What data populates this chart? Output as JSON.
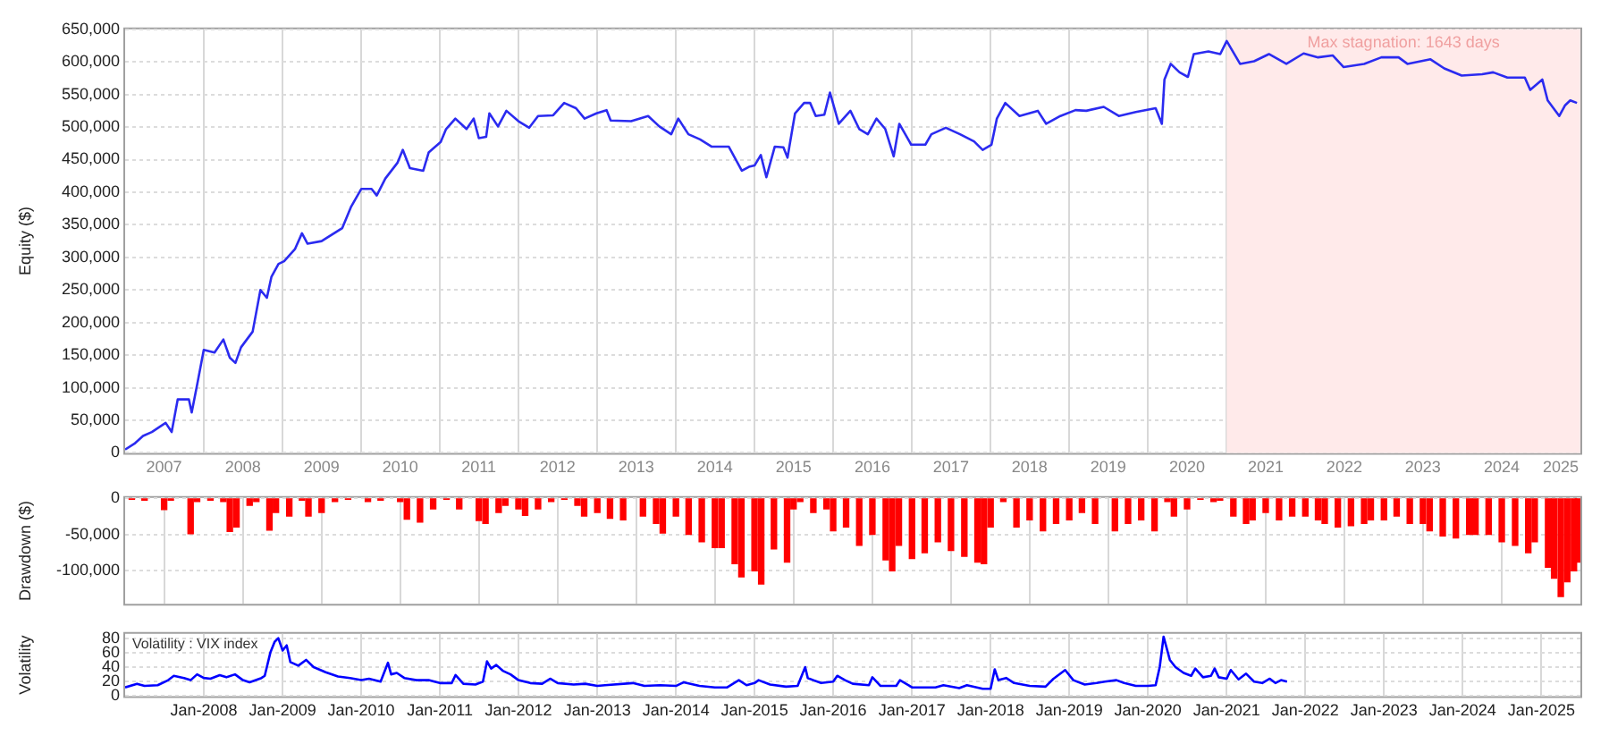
{
  "chart_data": [
    {
      "type": "line",
      "ylabel": "Equity ($)",
      "grid": true,
      "marker": "none",
      "xlim": [
        "2007-01-01",
        "2025-07-01"
      ],
      "xticks": [
        {
          "value": "2007-07-01",
          "label": "2007"
        },
        {
          "value": "2008-01-01",
          "label": null
        },
        {
          "value": "2008-07-01",
          "label": "2008"
        },
        {
          "value": "2009-01-01",
          "label": null
        },
        {
          "value": "2009-07-01",
          "label": "2009"
        },
        {
          "value": "2010-01-01",
          "label": null
        },
        {
          "value": "2010-07-01",
          "label": "2010"
        },
        {
          "value": "2011-01-01",
          "label": null
        },
        {
          "value": "2011-07-01",
          "label": "2011"
        },
        {
          "value": "2012-01-01",
          "label": null
        },
        {
          "value": "2012-07-01",
          "label": "2012"
        },
        {
          "value": "2013-01-01",
          "label": null
        },
        {
          "value": "2013-07-01",
          "label": "2013"
        },
        {
          "value": "2014-01-01",
          "label": null
        },
        {
          "value": "2014-07-01",
          "label": "2014"
        },
        {
          "value": "2015-01-01",
          "label": null
        },
        {
          "value": "2015-07-01",
          "label": "2015"
        },
        {
          "value": "2016-01-01",
          "label": null
        },
        {
          "value": "2016-07-01",
          "label": "2016"
        },
        {
          "value": "2017-01-01",
          "label": null
        },
        {
          "value": "2017-07-01",
          "label": "2017"
        },
        {
          "value": "2018-01-01",
          "label": null
        },
        {
          "value": "2018-07-01",
          "label": "2018"
        },
        {
          "value": "2019-01-01",
          "label": null
        },
        {
          "value": "2019-07-01",
          "label": "2019"
        },
        {
          "value": "2020-01-01",
          "label": null
        },
        {
          "value": "2020-07-01",
          "label": "2020"
        },
        {
          "value": "2021-01-01",
          "label": null
        },
        {
          "value": "2021-07-01",
          "label": "2021"
        },
        {
          "value": "2022-01-01",
          "label": null
        },
        {
          "value": "2022-07-01",
          "label": "2022"
        },
        {
          "value": "2023-01-01",
          "label": null
        },
        {
          "value": "2023-07-01",
          "label": "2023"
        },
        {
          "value": "2024-01-01",
          "label": null
        },
        {
          "value": "2024-07-01",
          "label": "2024"
        },
        {
          "value": "2025-01-01",
          "label": null
        },
        {
          "value": "2025-04-01",
          "label": "2025"
        }
      ],
      "ylim": [
        0,
        650000
      ],
      "yticks": [
        0,
        {
          "value": 50000,
          "label": "50,000"
        },
        {
          "value": 100000,
          "label": "100,000"
        },
        {
          "value": 150000,
          "label": "150,000"
        },
        {
          "value": 200000,
          "label": "200,000"
        },
        {
          "value": 250000,
          "label": "250,000"
        },
        {
          "value": 300000,
          "label": "300,000"
        },
        {
          "value": 350000,
          "label": "350,000"
        },
        {
          "value": 400000,
          "label": "400,000"
        },
        {
          "value": 450000,
          "label": "450,000"
        },
        {
          "value": 500000,
          "label": "500,000"
        },
        {
          "value": 550000,
          "label": "550,000"
        },
        {
          "value": 600000,
          "label": "600,000"
        },
        {
          "value": 650000,
          "label": "650,000"
        }
      ],
      "bands": [
        {
          "axis": "x",
          "from": "2021-01-01",
          "to": "2025-07-01",
          "label": "Max stagnation: 1643 days",
          "color": "#ffeaea"
        }
      ],
      "x": [
        "2007-01-01",
        "2007-02-13",
        "2007-03-25",
        "2007-05-05",
        "2007-07-08",
        "2007-08-05",
        "2007-09-02",
        "2007-10-24",
        "2007-11-06",
        "2007-12-02",
        "2008-01-01",
        "2008-02-20",
        "2008-04-01",
        "2008-05-01",
        "2008-05-27",
        "2008-06-22",
        "2008-08-15",
        "2008-09-20",
        "2008-10-20",
        "2008-11-10",
        "2008-12-13",
        "2009-01-08",
        "2009-02-28",
        "2009-04-01",
        "2009-04-27",
        "2009-07-01",
        "2009-10-05",
        "2009-11-14",
        "2010-01-01",
        "2010-02-18",
        "2010-03-14",
        "2010-04-23",
        "2010-06-18",
        "2010-07-13",
        "2010-08-15",
        "2010-10-16",
        "2010-11-10",
        "2011-01-05",
        "2011-01-30",
        "2011-03-14",
        "2011-05-05",
        "2011-06-07",
        "2011-07-01",
        "2011-08-04",
        "2011-08-19",
        "2011-09-28",
        "2011-11-06",
        "2012-01-01",
        "2012-02-20",
        "2012-04-01",
        "2012-06-10",
        "2012-07-31",
        "2012-09-24",
        "2012-11-03",
        "2012-12-28",
        "2013-02-13",
        "2013-03-04",
        "2013-06-07",
        "2013-08-25",
        "2013-10-16",
        "2013-12-10",
        "2014-01-12",
        "2014-02-28",
        "2014-04-23",
        "2014-06-15",
        "2014-09-03",
        "2014-11-03",
        "2014-12-06",
        "2015-01-01",
        "2015-01-30",
        "2015-02-25",
        "2015-04-05",
        "2015-05-15",
        "2015-06-03",
        "2015-07-08",
        "2015-08-19",
        "2015-09-16",
        "2015-10-12",
        "2015-11-21",
        "2015-12-17",
        "2016-01-27",
        "2016-03-21",
        "2016-05-01",
        "2016-06-10",
        "2016-07-20",
        "2016-08-30",
        "2016-10-08",
        "2016-11-03",
        "2016-12-28",
        "2017-03-04",
        "2017-04-01",
        "2017-06-07",
        "2017-08-12",
        "2017-10-16",
        "2017-11-25",
        "2018-01-05",
        "2018-01-30",
        "2018-03-10",
        "2018-05-15",
        "2018-08-08",
        "2018-09-16",
        "2018-11-21",
        "2019-01-30",
        "2019-03-21",
        "2019-06-10",
        "2019-08-19",
        "2019-11-06",
        "2020-02-06",
        "2020-03-06",
        "2020-03-18",
        "2020-04-16",
        "2020-05-27",
        "2020-07-05",
        "2020-08-01",
        "2020-10-08",
        "2020-12-02",
        "2021-01-01",
        "2021-03-04",
        "2021-05-08",
        "2021-07-16",
        "2021-10-05",
        "2021-12-24",
        "2022-03-01",
        "2022-05-08",
        "2022-06-28",
        "2022-10-01",
        "2022-12-20",
        "2023-03-10",
        "2023-04-20",
        "2023-08-05",
        "2023-10-08",
        "2023-12-28",
        "2024-04-01",
        "2024-05-22",
        "2024-07-27",
        "2024-10-16",
        "2024-11-10",
        "2025-01-05",
        "2025-01-30",
        "2025-03-25",
        "2025-04-20",
        "2025-05-15",
        "2025-06-15"
      ],
      "series": [
        {
          "color": "#2b2bf0",
          "values": [
            5000,
            14000,
            26000,
            32000,
            46000,
            32000,
            82000,
            82000,
            62000,
            106000,
            158000,
            154000,
            174000,
            146000,
            138000,
            162000,
            186000,
            250000,
            238000,
            270000,
            290000,
            294000,
            313000,
            337000,
            321000,
            325000,
            345000,
            377000,
            405000,
            405000,
            395000,
            421000,
            445000,
            465000,
            437000,
            433000,
            461000,
            477000,
            497000,
            513000,
            497000,
            513000,
            483000,
            485000,
            521000,
            501000,
            525000,
            509000,
            499000,
            517000,
            518000,
            537000,
            529000,
            513000,
            521000,
            526000,
            510000,
            509000,
            517000,
            501000,
            489000,
            513000,
            489000,
            481000,
            470000,
            470000,
            433000,
            439000,
            441000,
            457000,
            423000,
            470000,
            469000,
            453000,
            521000,
            537000,
            537000,
            517000,
            519000,
            553000,
            505000,
            525000,
            497000,
            489000,
            513000,
            497000,
            455000,
            505000,
            473000,
            473000,
            489000,
            499000,
            489000,
            478000,
            465000,
            473000,
            513000,
            537000,
            517000,
            525000,
            505000,
            517000,
            526000,
            525000,
            531000,
            517000,
            523000,
            529000,
            505000,
            573000,
            597000,
            584000,
            577000,
            612000,
            616000,
            612000,
            632000,
            597000,
            601000,
            612000,
            597000,
            613000,
            607000,
            610000,
            592000,
            597000,
            607000,
            607000,
            597000,
            604000,
            590000,
            579000,
            581000,
            584000,
            576000,
            576000,
            557000,
            573000,
            541000,
            517000,
            533000,
            541000,
            537000
          ]
        }
      ]
    },
    {
      "type": "bar",
      "ylabel": "Drawdown ($)",
      "grid": true,
      "tick_labels": "y",
      "xlim": [
        "2007-01-01",
        "2025-07-01"
      ],
      "xticks": [
        {
          "value": "2008-01-01",
          "label": null
        },
        {
          "value": "2009-01-01",
          "label": null
        },
        {
          "value": "2010-01-01",
          "label": null
        },
        {
          "value": "2011-01-01",
          "label": null
        },
        {
          "value": "2012-01-01",
          "label": null
        },
        {
          "value": "2013-01-01",
          "label": null
        },
        {
          "value": "2014-01-01",
          "label": null
        },
        {
          "value": "2015-01-01",
          "label": null
        },
        {
          "value": "2016-01-01",
          "label": null
        },
        {
          "value": "2017-01-01",
          "label": null
        },
        {
          "value": "2018-01-01",
          "label": null
        },
        {
          "value": "2019-01-01",
          "label": null
        },
        {
          "value": "2020-01-01",
          "label": null
        },
        {
          "value": "2021-01-01",
          "label": null
        },
        {
          "value": "2022-01-01",
          "label": null
        },
        {
          "value": "2023-01-01",
          "label": null
        },
        {
          "value": "2024-01-01",
          "label": null
        },
        {
          "value": "2025-01-01",
          "label": null
        }
      ],
      "ylim": [
        -145000,
        0
      ],
      "yticks": [
        0,
        {
          "value": -50000,
          "label": "-50,000"
        },
        {
          "value": -100000,
          "label": "-100,000"
        }
      ],
      "x": [
        "2007-02",
        "2007-04",
        "2007-07",
        "2007-08",
        "2007-11",
        "2007-12",
        "2008-02",
        "2008-04",
        "2008-05",
        "2008-06",
        "2008-08",
        "2008-09",
        "2008-11",
        "2008-12",
        "2009-02",
        "2009-04",
        "2009-05",
        "2009-07",
        "2009-09",
        "2009-11",
        "2010-02",
        "2010-04",
        "2010-07",
        "2010-08",
        "2010-10",
        "2010-12",
        "2011-02",
        "2011-04",
        "2011-07",
        "2011-08",
        "2011-10",
        "2011-11",
        "2012-01",
        "2012-02",
        "2012-04",
        "2012-06",
        "2012-08",
        "2012-10",
        "2012-11",
        "2013-01",
        "2013-03",
        "2013-05",
        "2013-08",
        "2013-10",
        "2013-11",
        "2014-01",
        "2014-03",
        "2014-05",
        "2014-07",
        "2014-08",
        "2014-10",
        "2014-11",
        "2015-01",
        "2015-02",
        "2015-04",
        "2015-06",
        "2015-07",
        "2015-08",
        "2015-10",
        "2015-12",
        "2016-01",
        "2016-03",
        "2016-05",
        "2016-07",
        "2016-09",
        "2016-10",
        "2016-11",
        "2017-01",
        "2017-03",
        "2017-05",
        "2017-07",
        "2017-09",
        "2017-11",
        "2017-12",
        "2018-01",
        "2018-03",
        "2018-05",
        "2018-07",
        "2018-09",
        "2018-11",
        "2019-01",
        "2019-03",
        "2019-05",
        "2019-08",
        "2019-10",
        "2019-12",
        "2020-02",
        "2020-04",
        "2020-05",
        "2020-07",
        "2020-09",
        "2020-11",
        "2020-12",
        "2021-02",
        "2021-04",
        "2021-05",
        "2021-07",
        "2021-09",
        "2021-11",
        "2022-01",
        "2022-03",
        "2022-04",
        "2022-06",
        "2022-08",
        "2022-10",
        "2022-11",
        "2023-01",
        "2023-03",
        "2023-05",
        "2023-07",
        "2023-08",
        "2023-10",
        "2023-12",
        "2024-02",
        "2024-03",
        "2024-05",
        "2024-07",
        "2024-09",
        "2024-11",
        "2024-12",
        "2025-02",
        "2025-03",
        "2025-04",
        "2025-05",
        "2025-06-01",
        "2025-06-20"
      ],
      "series": [
        {
          "color": "#ff0000",
          "values": [
            -2000,
            -3000,
            -16000,
            -3000,
            -49000,
            -5000,
            -3000,
            -5000,
            -46000,
            -40000,
            -10000,
            -5000,
            -44000,
            -20000,
            -25000,
            -3000,
            -25000,
            -20000,
            -5000,
            -2000,
            -5000,
            -3000,
            -5000,
            -29000,
            -33000,
            -15000,
            -2000,
            -15000,
            -31000,
            -35000,
            -20000,
            -10000,
            -15000,
            -24000,
            -15000,
            -5000,
            -2000,
            -10000,
            -25000,
            -20000,
            -28000,
            -30000,
            -25000,
            -35000,
            -48000,
            -25000,
            -50000,
            -60000,
            -68000,
            -68000,
            -90000,
            -108000,
            -100000,
            -118000,
            -70000,
            -88000,
            -15000,
            -5000,
            -20000,
            -15000,
            -45000,
            -40000,
            -65000,
            -50000,
            -85000,
            -100000,
            -65000,
            -83000,
            -75000,
            -60000,
            -72000,
            -80000,
            -88000,
            -90000,
            -40000,
            -5000,
            -40000,
            -30000,
            -45000,
            -35000,
            -30000,
            -20000,
            -35000,
            -45000,
            -35000,
            -30000,
            -45000,
            -5000,
            -25000,
            -15000,
            -2000,
            -5000,
            -3000,
            -25000,
            -35000,
            -30000,
            -20000,
            -30000,
            -25000,
            -25000,
            -30000,
            -35000,
            -40000,
            -38000,
            -35000,
            -30000,
            -30000,
            -25000,
            -35000,
            -35000,
            -45000,
            -52000,
            -55000,
            -50000,
            -50000,
            -50000,
            -60000,
            -65000,
            -75000,
            -60000,
            -95000,
            -110000,
            -135000,
            -115000,
            -100000,
            -88000
          ]
        }
      ]
    },
    {
      "type": "line",
      "ylabel": "Volatility",
      "grid": true,
      "marker": "none",
      "annotations": [
        "Volatility : VIX index"
      ],
      "xlim": [
        "2007-01-01",
        "2025-07-01"
      ],
      "xticks": [
        {
          "value": "2008-01-01",
          "label": "Jan-2008"
        },
        {
          "value": "2009-01-01",
          "label": "Jan-2009"
        },
        {
          "value": "2010-01-01",
          "label": "Jan-2010"
        },
        {
          "value": "2011-01-01",
          "label": "Jan-2011"
        },
        {
          "value": "2012-01-01",
          "label": "Jan-2012"
        },
        {
          "value": "2013-01-01",
          "label": "Jan-2013"
        },
        {
          "value": "2014-01-01",
          "label": "Jan-2014"
        },
        {
          "value": "2015-01-01",
          "label": "Jan-2015"
        },
        {
          "value": "2016-01-01",
          "label": "Jan-2016"
        },
        {
          "value": "2017-01-01",
          "label": "Jan-2017"
        },
        {
          "value": "2018-01-01",
          "label": "Jan-2018"
        },
        {
          "value": "2019-01-01",
          "label": "Jan-2019"
        },
        {
          "value": "2020-01-01",
          "label": "Jan-2020"
        },
        {
          "value": "2021-01-01",
          "label": "Jan-2021"
        },
        {
          "value": "2022-01-01",
          "label": "Jan-2022"
        },
        {
          "value": "2023-01-01",
          "label": "Jan-2023"
        },
        {
          "value": "2024-01-01",
          "label": "Jan-2024"
        },
        {
          "value": "2025-01-01",
          "label": "Jan-2025"
        }
      ],
      "ylim": [
        0,
        86
      ],
      "yticks": [
        0,
        20,
        40,
        60,
        80
      ],
      "x": [
        "2007-01-01",
        "2007-02-25",
        "2007-04-01",
        "2007-06-01",
        "2007-07-20",
        "2007-08-15",
        "2007-10-01",
        "2007-11-01",
        "2007-12-01",
        "2008-01-01",
        "2008-02-01",
        "2008-03-15",
        "2008-04-15",
        "2008-05-25",
        "2008-07-01",
        "2008-08-01",
        "2008-09-25",
        "2008-10-10",
        "2008-11-05",
        "2008-11-25",
        "2008-12-12",
        "2009-01-01",
        "2009-01-20",
        "2009-02-06",
        "2009-03-15",
        "2009-04-20",
        "2009-05-25",
        "2009-07-20",
        "2009-09-15",
        "2009-11-10",
        "2010-01-01",
        "2010-02-06",
        "2010-04-01",
        "2010-05-05",
        "2010-05-20",
        "2010-06-15",
        "2010-07-20",
        "2010-09-15",
        "2010-11-10",
        "2011-01-01",
        "2011-02-25",
        "2011-03-15",
        "2011-04-20",
        "2011-06-15",
        "2011-07-20",
        "2011-08-08",
        "2011-08-27",
        "2011-09-20",
        "2011-10-20",
        "2011-11-25",
        "2012-01-01",
        "2012-02-25",
        "2012-04-20",
        "2012-05-27",
        "2012-07-01",
        "2012-09-13",
        "2012-11-06",
        "2013-01-01",
        "2013-02-06",
        "2013-06-15",
        "2013-08-08",
        "2013-10-20",
        "2014-01-01",
        "2014-02-06",
        "2014-04-20",
        "2014-07-01",
        "2014-08-27",
        "2014-10-20",
        "2014-11-25",
        "2015-01-01",
        "2015-01-20",
        "2015-03-14",
        "2015-05-27",
        "2015-07-20",
        "2015-08-24",
        "2015-09-05",
        "2015-10-01",
        "2015-11-06",
        "2016-01-01",
        "2016-01-20",
        "2016-02-25",
        "2016-04-01",
        "2016-06-15",
        "2016-07-01",
        "2016-08-08",
        "2016-10-20",
        "2016-11-06",
        "2017-01-01",
        "2017-04-20",
        "2017-05-27",
        "2017-08-08",
        "2017-09-13",
        "2017-11-25",
        "2018-01-01",
        "2018-01-20",
        "2018-02-06",
        "2018-03-14",
        "2018-04-20",
        "2018-07-01",
        "2018-09-13",
        "2018-10-20",
        "2018-12-13",
        "2019-01-20",
        "2019-03-14",
        "2019-05-08",
        "2019-06-15",
        "2019-08-08",
        "2019-09-13",
        "2019-11-06",
        "2020-01-01",
        "2020-02-06",
        "2020-02-25",
        "2020-03-14",
        "2020-04-12",
        "2020-05-08",
        "2020-06-15",
        "2020-07-20",
        "2020-08-08",
        "2020-09-13",
        "2020-10-20",
        "2020-11-06",
        "2020-11-25",
        "2021-01-01",
        "2021-01-20",
        "2021-02-25",
        "2021-04-01",
        "2021-05-08",
        "2021-06-15",
        "2021-07-20",
        "2021-08-15",
        "2021-09-10",
        "2021-10-08"
      ],
      "series": [
        {
          "color": "#0000ff",
          "values": [
            12,
            17,
            14,
            15,
            22,
            28,
            25,
            22,
            30,
            25,
            24,
            29,
            26,
            30,
            22,
            19,
            25,
            28,
            60,
            75,
            80,
            63,
            70,
            47,
            42,
            50,
            40,
            33,
            27,
            25,
            22,
            24,
            20,
            46,
            30,
            32,
            25,
            22,
            22,
            18,
            18,
            29,
            17,
            16,
            20,
            48,
            38,
            43,
            35,
            30,
            22,
            18,
            17,
            24,
            18,
            16,
            17,
            14,
            15,
            18,
            14,
            15,
            14,
            19,
            14,
            12,
            12,
            22,
            15,
            18,
            22,
            16,
            13,
            14,
            40,
            25,
            22,
            18,
            20,
            28,
            22,
            17,
            15,
            26,
            14,
            14,
            22,
            12,
            12,
            15,
            11,
            15,
            10,
            10,
            37,
            22,
            25,
            18,
            14,
            13,
            24,
            36,
            22,
            16,
            18,
            20,
            22,
            18,
            14,
            14,
            15,
            40,
            82,
            50,
            40,
            32,
            28,
            38,
            26,
            28,
            38,
            26,
            24,
            36,
            23,
            31,
            20,
            18,
            24,
            18,
            22,
            20
          ]
        }
      ]
    }
  ]
}
